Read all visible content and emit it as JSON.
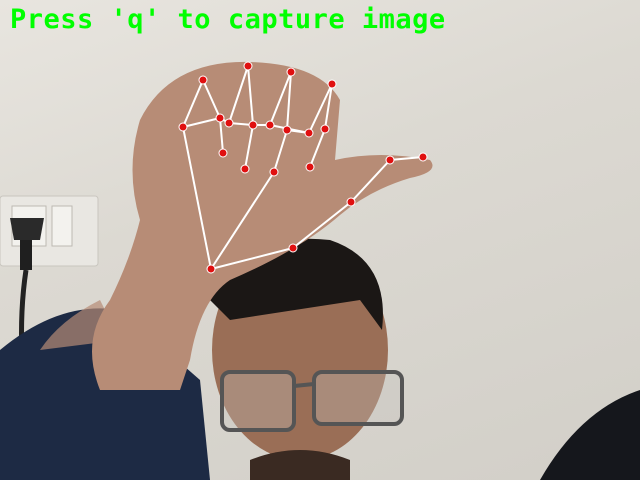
{
  "window": {
    "prompt_text": "Press 'q' to capture image"
  },
  "landmark_style": {
    "point_color": "#e01010",
    "line_color": "#ffffff"
  },
  "icons": [
    "wall-switch-icon",
    "power-plug-icon"
  ]
}
